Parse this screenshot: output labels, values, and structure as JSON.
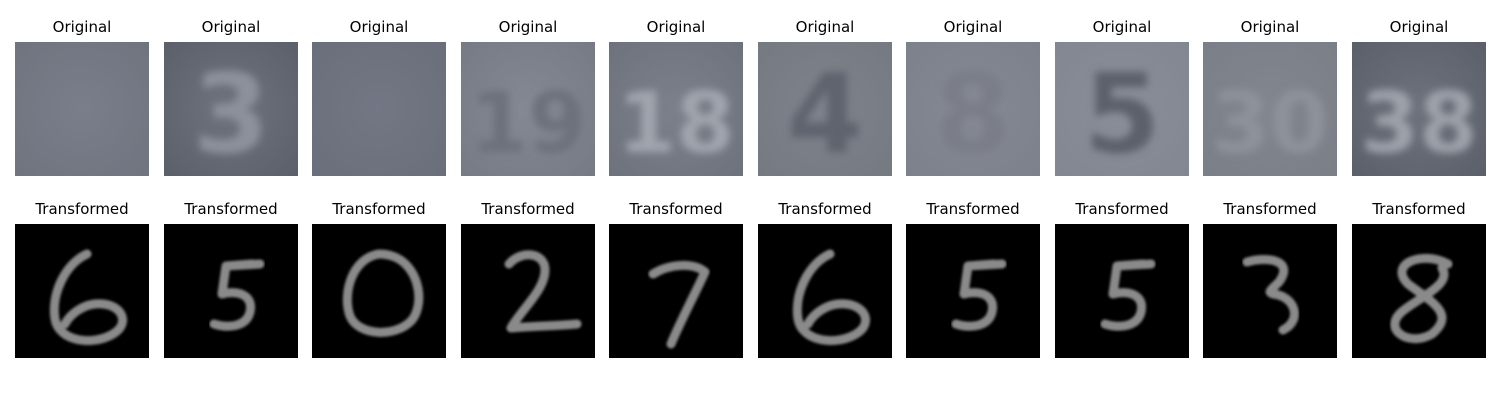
{
  "rows": [
    {
      "title": "Original",
      "kind": "svhn",
      "items": [
        {
          "glyph": "",
          "bg": "#7a7e8a",
          "fg": "#6a6e79",
          "edge": "#6f737e"
        },
        {
          "glyph": "3",
          "bg": "#6f737e",
          "fg": "#8d919b",
          "edge": "#5a5e68"
        },
        {
          "glyph": "",
          "bg": "#737784",
          "fg": "#6b6f7b",
          "edge": "#6a6e7a"
        },
        {
          "glyph": "19",
          "bg": "#858994",
          "fg": "#6d717c",
          "edge": "#757984"
        },
        {
          "glyph": "18",
          "bg": "#7c808b",
          "fg": "#a1a5ae",
          "edge": "#6d717c"
        },
        {
          "glyph": "4",
          "bg": "#7f838d",
          "fg": "#5f636e",
          "edge": "#74787f"
        },
        {
          "glyph": "8",
          "bg": "#858994",
          "fg": "#7a7e88",
          "edge": "#7c808a"
        },
        {
          "glyph": "5",
          "bg": "#8a8e98",
          "fg": "#5c606b",
          "edge": "#828690"
        },
        {
          "glyph": "30",
          "bg": "#82868f",
          "fg": "#8e929b",
          "edge": "#7a7e87"
        },
        {
          "glyph": "38",
          "bg": "#6e727c",
          "fg": "#9ea2ab",
          "edge": "#5a5e68"
        }
      ]
    },
    {
      "title": "Transformed",
      "kind": "mnist",
      "items": [
        {
          "glyph": "6"
        },
        {
          "glyph": "5"
        },
        {
          "glyph": "0"
        },
        {
          "glyph": "2"
        },
        {
          "glyph": "7"
        },
        {
          "glyph": "6"
        },
        {
          "glyph": "5"
        },
        {
          "glyph": "5"
        },
        {
          "glyph": "3"
        },
        {
          "glyph": "8"
        }
      ]
    }
  ],
  "colors": {
    "mnist_bg": "#000000",
    "mnist_stroke": "#8a8a8a"
  }
}
